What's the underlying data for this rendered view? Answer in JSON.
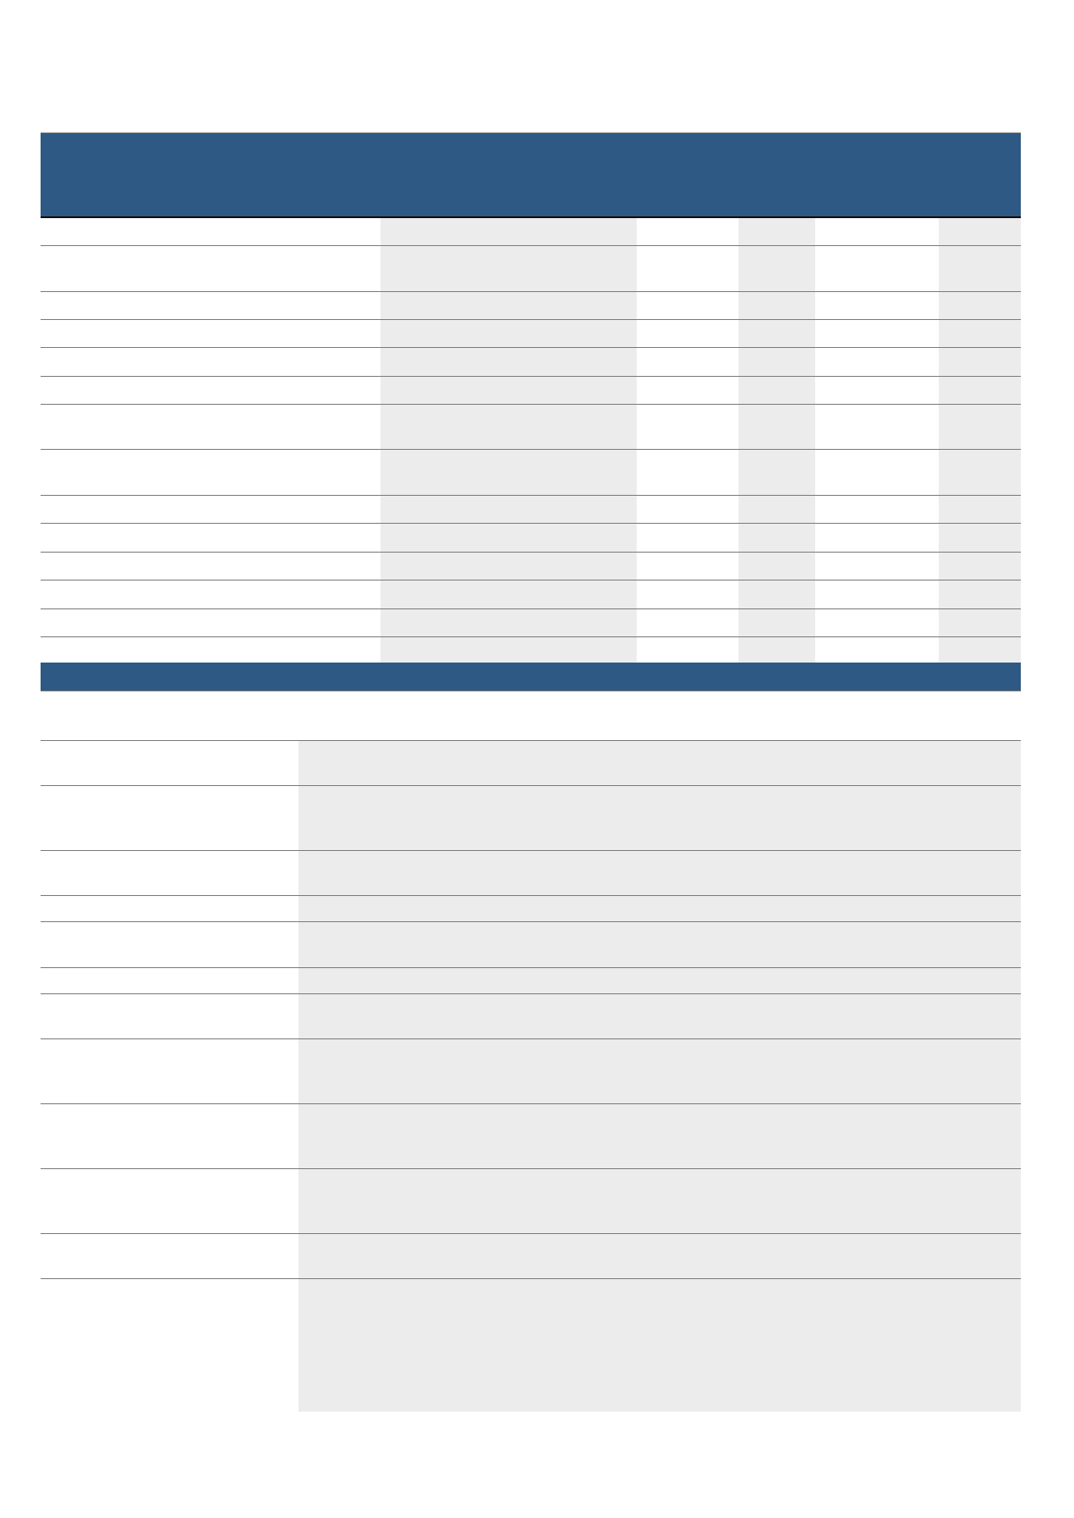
{
  "colors": {
    "header": "#2f5985",
    "shade": "#ececec",
    "rule": "#7f7f7f"
  },
  "table1": {
    "header": "",
    "rows": [
      [
        "",
        "",
        "",
        "",
        "",
        ""
      ],
      [
        "",
        "",
        "",
        "",
        "",
        ""
      ],
      [
        "",
        "",
        "",
        "",
        "",
        ""
      ],
      [
        "",
        "",
        "",
        "",
        "",
        ""
      ],
      [
        "",
        "",
        "",
        "",
        "",
        ""
      ],
      [
        "",
        "",
        "",
        "",
        "",
        ""
      ],
      [
        "",
        "",
        "",
        "",
        "",
        ""
      ],
      [
        "",
        "",
        "",
        "",
        "",
        ""
      ],
      [
        "",
        "",
        "",
        "",
        "",
        ""
      ],
      [
        "",
        "",
        "",
        "",
        "",
        ""
      ],
      [
        "",
        "",
        "",
        "",
        "",
        ""
      ],
      [
        "",
        "",
        "",
        "",
        "",
        ""
      ],
      [
        "",
        "",
        "",
        "",
        "",
        ""
      ],
      [
        "",
        "",
        "",
        "",
        "",
        ""
      ]
    ]
  },
  "section2": {
    "band": "",
    "heading": "",
    "rows": [
      [
        "",
        ""
      ],
      [
        "",
        ""
      ],
      [
        "",
        ""
      ],
      [
        "",
        ""
      ],
      [
        "",
        ""
      ],
      [
        "",
        ""
      ],
      [
        "",
        ""
      ],
      [
        "",
        ""
      ],
      [
        "",
        ""
      ],
      [
        "",
        ""
      ],
      [
        "",
        ""
      ],
      [
        "",
        ""
      ]
    ]
  }
}
